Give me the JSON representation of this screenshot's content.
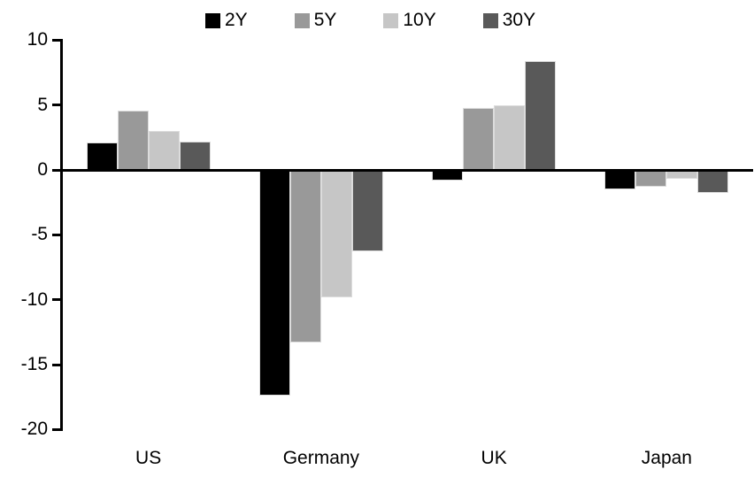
{
  "chart_data": {
    "type": "bar",
    "title": "",
    "xlabel": "",
    "ylabel": "",
    "categories": [
      "US",
      "Germany",
      "UK",
      "Japan"
    ],
    "series": [
      {
        "name": "2Y",
        "color": "#000000",
        "values": [
          2.1,
          -17.4,
          -0.8,
          -1.5
        ]
      },
      {
        "name": "5Y",
        "color": "#999999",
        "values": [
          4.6,
          -13.3,
          4.8,
          -1.3
        ]
      },
      {
        "name": "10Y",
        "color": "#c6c6c6",
        "values": [
          3.0,
          -9.8,
          5.0,
          -0.7
        ]
      },
      {
        "name": "30Y",
        "color": "#595959",
        "values": [
          2.2,
          -6.3,
          8.4,
          -1.8
        ]
      }
    ],
    "ylim": [
      -20,
      10
    ],
    "yticks": [
      10,
      5,
      0,
      -5,
      -10,
      -15,
      -20
    ],
    "grid": false,
    "legend_position": "top",
    "axis_color": "#000000",
    "background_color": "#ffffff"
  }
}
